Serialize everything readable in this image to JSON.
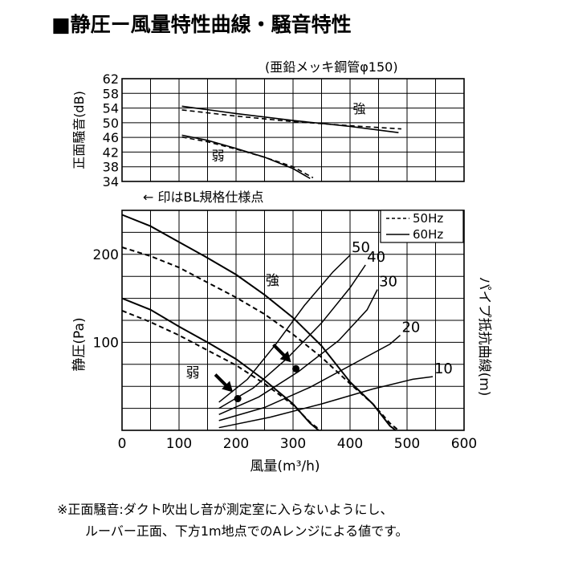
{
  "page": {
    "title": "■静圧ー風量特性曲線・騒音特性",
    "note_line1": "※正面騒音:ダクト吹出し音が測定室に入らないようにし、",
    "note_line2": "ルーバー正面、下方1m地点でのAレンジによる値です。",
    "legend_50": "50Hz",
    "legend_60": "60Hz",
    "bl_note": "← 印はBL規格仕様点",
    "pipe_spec": "(亜鉛メッキ鋼管φ150)"
  },
  "chart_data": [
    {
      "type": "line",
      "xlabel": "",
      "ylabel": "正面騒音(dB)",
      "xlim": [
        0,
        600
      ],
      "ylim": [
        34,
        62
      ],
      "yticks": [
        "62",
        "58",
        "54",
        "50",
        "46",
        "42",
        "38",
        "34"
      ],
      "ytick_values": [
        62,
        58,
        54,
        50,
        46,
        42,
        38,
        34
      ],
      "grid": true,
      "labels": {
        "strong": "強",
        "weak": "弱"
      },
      "series": [
        {
          "name": "強 60Hz",
          "style": "solid",
          "x": [
            105,
            200,
            300,
            400,
            485
          ],
          "y": [
            54.5,
            52.5,
            50.6,
            49.0,
            47.3
          ]
        },
        {
          "name": "強 50Hz",
          "style": "dashed",
          "x": [
            105,
            200,
            300,
            400,
            490
          ],
          "y": [
            53.5,
            51.8,
            50.3,
            49.2,
            48.3
          ]
        },
        {
          "name": "弱 60Hz",
          "style": "solid",
          "x": [
            105,
            150,
            200,
            250,
            300,
            330
          ],
          "y": [
            46.6,
            45.2,
            43.0,
            40.6,
            37.5,
            34.8
          ]
        },
        {
          "name": "弱 50Hz",
          "style": "dashed",
          "x": [
            105,
            150,
            200,
            250,
            300,
            335
          ],
          "y": [
            46.1,
            44.8,
            42.8,
            40.6,
            38.0,
            35.0
          ]
        }
      ]
    },
    {
      "type": "line",
      "xlabel": "風量(m³/h)",
      "ylabel": "静圧(Pa)",
      "y2label": "パイプ抵抗曲線(m)",
      "xlim": [
        0,
        600
      ],
      "ylim": [
        0,
        250
      ],
      "xticks": [
        "0",
        "100",
        "200",
        "300",
        "400",
        "500",
        "600"
      ],
      "xtick_values": [
        0,
        100,
        200,
        300,
        400,
        500,
        600
      ],
      "yticks": [
        "200",
        "100"
      ],
      "ytick_values": [
        200,
        100
      ],
      "grid": true,
      "labels": {
        "strong": "強",
        "weak": "弱"
      },
      "series": [
        {
          "name": "強 60Hz",
          "style": "solid",
          "x": [
            0,
            50,
            100,
            150,
            200,
            250,
            300,
            350,
            400,
            440,
            470,
            480
          ],
          "y": [
            245,
            232,
            214,
            196,
            177,
            154,
            128,
            96,
            55,
            30,
            5,
            0
          ]
        },
        {
          "name": "強 50Hz",
          "style": "dashed",
          "x": [
            0,
            50,
            100,
            150,
            200,
            250,
            300,
            350,
            400,
            440,
            470,
            485
          ],
          "y": [
            208,
            198,
            185,
            168,
            151,
            132,
            109,
            83,
            53,
            30,
            8,
            0
          ]
        },
        {
          "name": "弱 60Hz",
          "style": "solid",
          "x": [
            0,
            50,
            100,
            150,
            200,
            250,
            300,
            330,
            345
          ],
          "y": [
            150,
            137,
            118,
            100,
            81,
            57,
            30,
            8,
            0
          ]
        },
        {
          "name": "弱 50Hz",
          "style": "dashed",
          "x": [
            0,
            50,
            100,
            150,
            200,
            250,
            300,
            330,
            348
          ],
          "y": [
            136,
            123,
            108,
            91,
            74,
            53,
            29,
            9,
            0
          ]
        }
      ],
      "pipe_curves": [
        {
          "label": "50",
          "x": [
            170,
            220,
            270,
            320,
            370,
            400
          ],
          "y": [
            32,
            58,
            98,
            142,
            180,
            199
          ]
        },
        {
          "label": "40",
          "x": [
            170,
            230,
            290,
            350,
            400,
            427
          ],
          "y": [
            25,
            48,
            82,
            122,
            162,
            188
          ]
        },
        {
          "label": "30",
          "x": [
            170,
            240,
            310,
            380,
            430,
            448
          ],
          "y": [
            18,
            38,
            67,
            102,
            137,
            160
          ]
        },
        {
          "label": "20",
          "x": [
            170,
            250,
            330,
            410,
            470,
            488
          ],
          "y": [
            11,
            26,
            49,
            77,
            98,
            108
          ]
        },
        {
          "label": "10",
          "x": [
            170,
            260,
            350,
            440,
            510,
            545
          ],
          "y": [
            3,
            15,
            30,
            47,
            58,
            61
          ]
        }
      ],
      "bl_points": [
        {
          "x": 203,
          "y": 36
        },
        {
          "x": 305,
          "y": 70
        }
      ]
    }
  ]
}
